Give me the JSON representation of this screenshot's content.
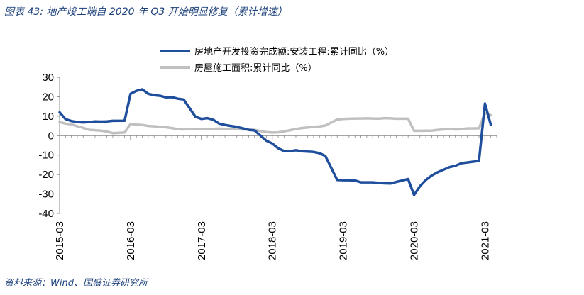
{
  "title": "图表 43:  地产竣工端自 2020 年 Q3 开始明显修复（累计增速）",
  "source": "资料来源：Wind、国盛证券研究所",
  "colors": {
    "series1": "#1f4e9c",
    "series2": "#c0c0c0",
    "accent": "#1a3f7a"
  },
  "chart_data": {
    "type": "line",
    "title": "",
    "xlabel": "",
    "ylabel": "",
    "ylim": [
      -40,
      30
    ],
    "yticks": [
      30,
      20,
      10,
      0,
      -10,
      -20,
      -30,
      -40
    ],
    "xlim": [
      "2015-03",
      "2021-05"
    ],
    "xticks": [
      "2015-03",
      "2016-03",
      "2017-03",
      "2018-03",
      "2019-03",
      "2020-03",
      "2021-03"
    ],
    "grid": false,
    "legend": "top",
    "series": [
      {
        "name": "房地产开发投资完成额:安装工程:累计同比（%）",
        "points": [
          [
            "2015-03",
            12
          ],
          [
            "2015-04",
            8.5
          ],
          [
            "2015-05",
            7.5
          ],
          [
            "2015-06",
            7
          ],
          [
            "2015-07",
            6.8
          ],
          [
            "2015-08",
            7
          ],
          [
            "2015-09",
            7.3
          ],
          [
            "2015-10",
            7.2
          ],
          [
            "2015-11",
            7.3
          ],
          [
            "2015-12",
            7.6
          ],
          [
            "2016-02",
            7.7
          ],
          [
            "2016-03",
            21.5
          ],
          [
            "2016-04",
            23
          ],
          [
            "2016-05",
            23.8
          ],
          [
            "2016-06",
            21.5
          ],
          [
            "2016-07",
            20.8
          ],
          [
            "2016-08",
            20.5
          ],
          [
            "2016-09",
            19.7
          ],
          [
            "2016-10",
            19.8
          ],
          [
            "2016-11",
            19
          ],
          [
            "2016-12",
            18.6
          ],
          [
            "2017-02",
            9.7
          ],
          [
            "2017-03",
            8.6
          ],
          [
            "2017-04",
            9
          ],
          [
            "2017-05",
            8.2
          ],
          [
            "2017-06",
            6.2
          ],
          [
            "2017-07",
            5.5
          ],
          [
            "2017-08",
            5
          ],
          [
            "2017-09",
            4.5
          ],
          [
            "2017-10",
            3.8
          ],
          [
            "2017-11",
            3
          ],
          [
            "2017-12",
            2.7
          ],
          [
            "2018-02",
            -2.6
          ],
          [
            "2018-03",
            -4
          ],
          [
            "2018-04",
            -6.5
          ],
          [
            "2018-05",
            -7.9
          ],
          [
            "2018-06",
            -8
          ],
          [
            "2018-07",
            -7.5
          ],
          [
            "2018-08",
            -8
          ],
          [
            "2018-09",
            -8.2
          ],
          [
            "2018-10",
            -8.4
          ],
          [
            "2018-11",
            -9
          ],
          [
            "2018-12",
            -10.5
          ],
          [
            "2019-02",
            -22.8
          ],
          [
            "2019-03",
            -22.9
          ],
          [
            "2019-04",
            -22.9
          ],
          [
            "2019-05",
            -23.1
          ],
          [
            "2019-06",
            -24
          ],
          [
            "2019-07",
            -24
          ],
          [
            "2019-08",
            -24
          ],
          [
            "2019-09",
            -24.3
          ],
          [
            "2019-10",
            -24.5
          ],
          [
            "2019-11",
            -24.6
          ],
          [
            "2019-12",
            -23.8
          ],
          [
            "2020-02",
            -22.3
          ],
          [
            "2020-03",
            -30.5
          ],
          [
            "2020-04",
            -26
          ],
          [
            "2020-05",
            -22.8
          ],
          [
            "2020-06",
            -20.5
          ],
          [
            "2020-07",
            -18.8
          ],
          [
            "2020-08",
            -17.5
          ],
          [
            "2020-09",
            -16.2
          ],
          [
            "2020-10",
            -15.5
          ],
          [
            "2020-11",
            -14.2
          ],
          [
            "2020-12",
            -13.8
          ],
          [
            "2021-02",
            -13
          ],
          [
            "2021-03",
            16.5
          ],
          [
            "2021-04",
            5.5
          ]
        ]
      },
      {
        "name": "房屋施工面积:累计同比（%）",
        "points": [
          [
            "2015-03",
            7
          ],
          [
            "2015-04",
            6.2
          ],
          [
            "2015-05",
            5.8
          ],
          [
            "2015-06",
            4.8
          ],
          [
            "2015-07",
            4
          ],
          [
            "2015-08",
            3
          ],
          [
            "2015-09",
            2.8
          ],
          [
            "2015-10",
            2.6
          ],
          [
            "2015-11",
            2.1
          ],
          [
            "2015-12",
            1.3
          ],
          [
            "2016-02",
            1.6
          ],
          [
            "2016-03",
            6
          ],
          [
            "2016-04",
            5.7
          ],
          [
            "2016-05",
            5.5
          ],
          [
            "2016-06",
            5
          ],
          [
            "2016-07",
            4.8
          ],
          [
            "2016-08",
            4.6
          ],
          [
            "2016-09",
            4.3
          ],
          [
            "2016-10",
            3.9
          ],
          [
            "2016-11",
            3.3
          ],
          [
            "2016-12",
            3.2
          ],
          [
            "2017-02",
            3.5
          ],
          [
            "2017-03",
            3.3
          ],
          [
            "2017-04",
            3.4
          ],
          [
            "2017-05",
            3.5
          ],
          [
            "2017-06",
            3.6
          ],
          [
            "2017-07",
            3.5
          ],
          [
            "2017-08",
            3.3
          ],
          [
            "2017-09",
            3.3
          ],
          [
            "2017-10",
            3.2
          ],
          [
            "2017-11",
            3.1
          ],
          [
            "2017-12",
            3
          ],
          [
            "2018-02",
            1.8
          ],
          [
            "2018-03",
            1.6
          ],
          [
            "2018-04",
            1.7
          ],
          [
            "2018-05",
            2.2
          ],
          [
            "2018-06",
            2.8
          ],
          [
            "2018-07",
            3.4
          ],
          [
            "2018-08",
            3.9
          ],
          [
            "2018-09",
            4.2
          ],
          [
            "2018-10",
            4.5
          ],
          [
            "2018-11",
            4.7
          ],
          [
            "2018-12",
            5.2
          ],
          [
            "2019-02",
            8.3
          ],
          [
            "2019-03",
            8.6
          ],
          [
            "2019-04",
            8.7
          ],
          [
            "2019-05",
            8.8
          ],
          [
            "2019-06",
            8.8
          ],
          [
            "2019-07",
            8.9
          ],
          [
            "2019-08",
            8.8
          ],
          [
            "2019-09",
            8.7
          ],
          [
            "2019-10",
            9
          ],
          [
            "2019-11",
            8.9
          ],
          [
            "2019-12",
            8.7
          ],
          [
            "2020-02",
            8.7
          ],
          [
            "2020-03",
            2.5
          ],
          [
            "2020-04",
            2.5
          ],
          [
            "2020-05",
            2.6
          ],
          [
            "2020-06",
            2.6
          ],
          [
            "2020-07",
            3
          ],
          [
            "2020-08",
            3.2
          ],
          [
            "2020-09",
            3.4
          ],
          [
            "2020-10",
            3.2
          ],
          [
            "2020-11",
            3.3
          ],
          [
            "2020-12",
            3.7
          ],
          [
            "2021-02",
            3.8
          ],
          [
            "2021-03",
            11.5
          ],
          [
            "2021-04",
            10.5
          ]
        ]
      }
    ]
  }
}
